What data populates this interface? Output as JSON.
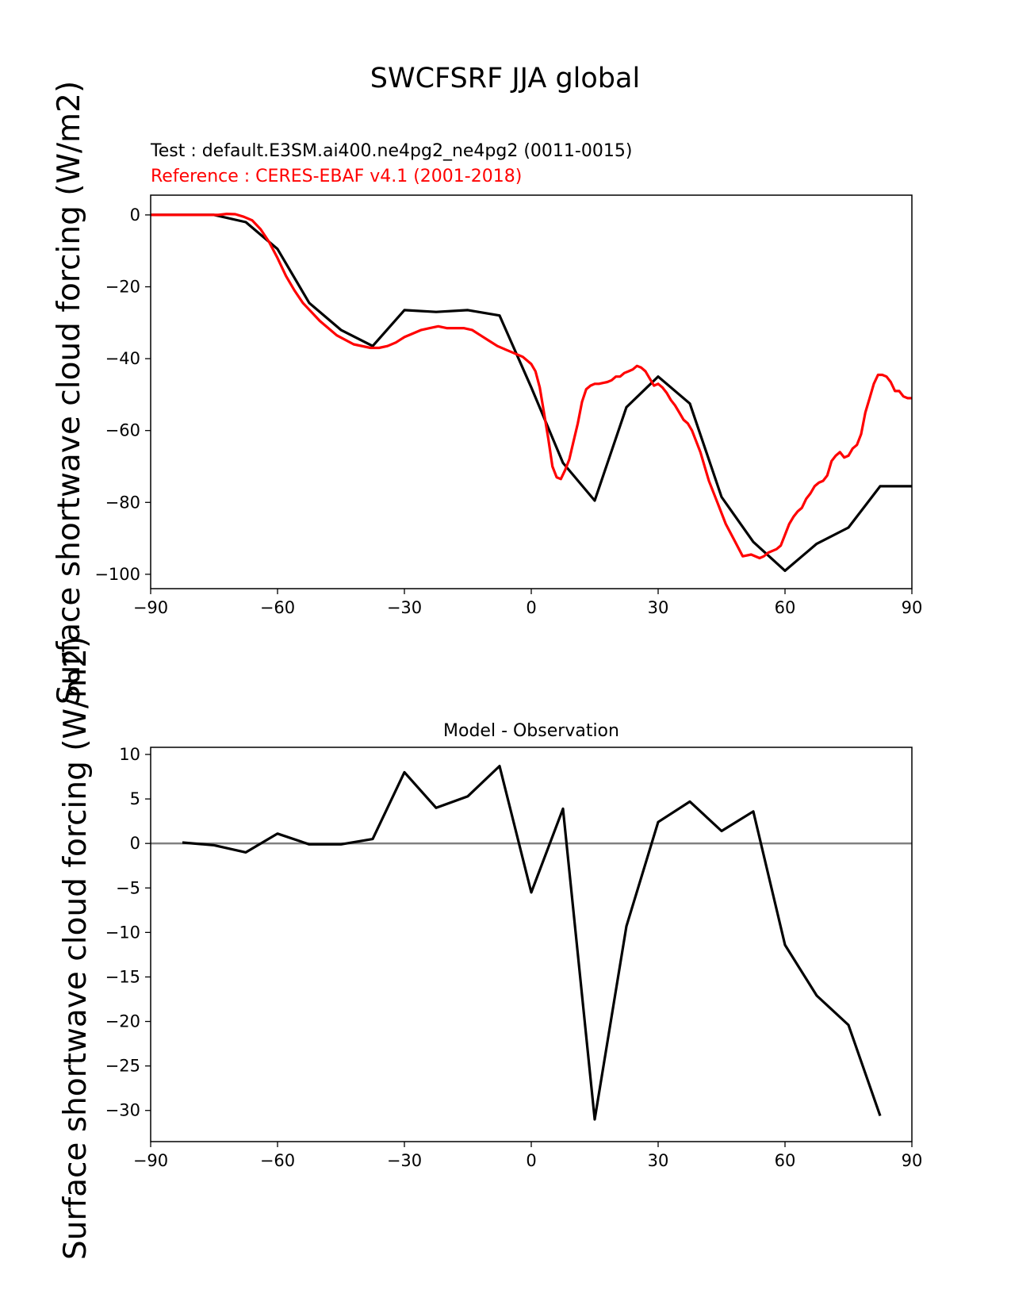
{
  "figure_title": "SWCFSRF JJA global",
  "colors": {
    "test": "#000000",
    "reference": "#ff0000",
    "zero_line": "#808080"
  },
  "chart_data": [
    {
      "type": "line",
      "title": "",
      "test_label": "Test : default.E3SM.ai400.ne4pg2_ne4pg2 (0011-0015)",
      "reference_label": "Reference : CERES-EBAF v4.1 (2001-2018)",
      "xlabel": "",
      "ylabel": "Surface shortwave cloud forcing (W/m2)",
      "xlim": [
        -90,
        90
      ],
      "ylim": [
        -104,
        5.5
      ],
      "xticks": [
        -90,
        -60,
        -30,
        0,
        30,
        60,
        90
      ],
      "yticks": [
        0,
        -20,
        -40,
        -60,
        -80,
        -100
      ],
      "xtick_labels": [
        "−90",
        "−60",
        "−30",
        "0",
        "30",
        "60",
        "90"
      ],
      "ytick_labels": [
        "0",
        "−20",
        "−40",
        "−60",
        "−80",
        "−100"
      ],
      "series": [
        {
          "name": "Test : default.E3SM.ai400.ne4pg2_ne4pg2 (0011-0015)",
          "color": "#000000",
          "x": [
            -90,
            -82.5,
            -75,
            -67.5,
            -60,
            -52.5,
            -45,
            -37.5,
            -30,
            -22.5,
            -15,
            -7.5,
            0,
            7.5,
            15,
            22.5,
            30,
            37.5,
            45,
            52.5,
            60,
            67.5,
            75,
            82.5,
            90
          ],
          "y": [
            0,
            0,
            0,
            -2,
            -9.5,
            -24.5,
            -32,
            -36.5,
            -26.5,
            -27,
            -26.5,
            -28,
            -48,
            -69,
            -79.5,
            -53.5,
            -45,
            -52.5,
            -78.5,
            -91,
            -99,
            -91.5,
            -87,
            -75.5,
            -75.5
          ]
        },
        {
          "name": "Reference : CERES-EBAF v4.1 (2001-2018)",
          "color": "#ff0000",
          "x": [
            -90,
            -80,
            -74,
            -72,
            -70,
            -68,
            -66,
            -64,
            -62,
            -60,
            -58,
            -56,
            -54,
            -50,
            -46,
            -42,
            -38,
            -36,
            -34,
            -32,
            -30,
            -28,
            -26,
            -24,
            -22,
            -20,
            -18,
            -16,
            -14,
            -12,
            -10,
            -8,
            -6,
            -4,
            -2,
            0,
            1,
            2,
            3,
            4,
            5,
            6,
            7,
            8,
            9,
            10,
            11,
            12,
            13,
            14,
            15,
            16,
            18,
            19,
            20,
            21,
            22,
            23,
            24,
            25,
            26,
            27,
            28,
            29,
            30,
            31,
            32,
            33,
            34,
            35,
            36,
            37,
            38,
            39,
            40,
            42,
            44,
            46,
            48,
            50,
            52,
            54,
            55,
            56,
            58,
            59,
            60,
            61,
            62,
            63,
            64,
            65,
            66,
            67,
            68,
            69,
            70,
            71,
            72,
            73,
            74,
            75,
            76,
            77,
            78,
            79,
            80,
            81,
            82,
            83,
            84,
            85,
            86,
            87,
            88,
            89,
            90
          ],
          "y": [
            0,
            0,
            0,
            0.3,
            0.2,
            -0.5,
            -1.5,
            -4,
            -7.5,
            -12,
            -17,
            -21,
            -24.5,
            -29.5,
            -33.5,
            -36,
            -37,
            -37,
            -36.5,
            -35.5,
            -34,
            -33,
            -32,
            -31.5,
            -31,
            -31.5,
            -31.5,
            -31.5,
            -32,
            -33.5,
            -35,
            -36.5,
            -37.5,
            -38.5,
            -39.5,
            -41.5,
            -43.5,
            -48,
            -55,
            -62,
            -70,
            -73,
            -73.5,
            -71,
            -68,
            -63,
            -58,
            -52,
            -48.5,
            -47.5,
            -47,
            -47,
            -46.5,
            -46,
            -45,
            -45,
            -44,
            -43.5,
            -43,
            -42,
            -42.5,
            -43.5,
            -45.5,
            -47.5,
            -47,
            -48,
            -49.5,
            -51.5,
            -53,
            -55,
            -57,
            -58,
            -60,
            -63,
            -66,
            -74,
            -80,
            -86,
            -90.5,
            -95,
            -94.5,
            -95.5,
            -95,
            -94,
            -93,
            -92,
            -89,
            -86,
            -84,
            -82.5,
            -81.5,
            -79,
            -77.5,
            -75.5,
            -74.5,
            -74,
            -72.5,
            -68.5,
            -67,
            -66,
            -67.5,
            -67,
            -65,
            -64,
            -61,
            -55,
            -51,
            -47,
            -44.5,
            -44.5,
            -45,
            -46.5,
            -49,
            -49,
            -50.5,
            -51,
            -51
          ]
        }
      ]
    },
    {
      "type": "line",
      "title": "Model - Observation",
      "xlabel": "",
      "ylabel": "Surface shortwave cloud forcing (W/m2)",
      "xlim": [
        -90,
        90
      ],
      "ylim": [
        -33.5,
        10.8
      ],
      "xticks": [
        -90,
        -60,
        -30,
        0,
        30,
        60,
        90
      ],
      "yticks": [
        10,
        5,
        0,
        -5,
        -10,
        -15,
        -20,
        -25,
        -30
      ],
      "xtick_labels": [
        "−90",
        "−60",
        "−30",
        "0",
        "30",
        "60",
        "90"
      ],
      "ytick_labels": [
        "10",
        "5",
        "0",
        "−5",
        "−10",
        "−15",
        "−20",
        "−25",
        "−30"
      ],
      "zero_line": 0,
      "series": [
        {
          "color": "#000000",
          "x": [
            -82.5,
            -75,
            -67.5,
            -60,
            -52.5,
            -45,
            -37.5,
            -30,
            -22.5,
            -15,
            -7.5,
            0,
            7.5,
            15,
            22.5,
            30,
            37.5,
            45,
            52.5,
            60,
            67.5,
            75,
            82.5
          ],
          "y": [
            0.1,
            -0.2,
            -1,
            1.1,
            -0.1,
            -0.1,
            0.5,
            8,
            4,
            5.3,
            8.7,
            -5.5,
            3.9,
            -31,
            -9.3,
            2.4,
            4.7,
            1.4,
            3.6,
            -11.4,
            -17.1,
            -20.4,
            -30.6
          ]
        }
      ]
    }
  ]
}
